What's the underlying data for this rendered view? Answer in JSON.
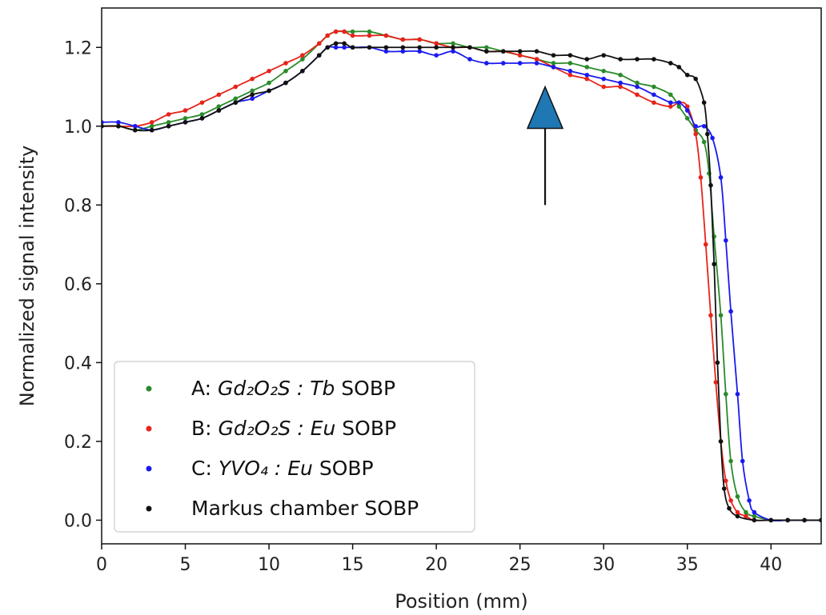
{
  "chart_data": {
    "type": "line",
    "title": "",
    "xlabel": "Position (mm)",
    "ylabel": "Normalized signal intensity",
    "xlim": [
      0,
      43
    ],
    "ylim": [
      -0.06,
      1.3
    ],
    "xticks": [
      0,
      5,
      10,
      15,
      20,
      25,
      30,
      35,
      40
    ],
    "yticks": [
      0.0,
      0.2,
      0.4,
      0.6,
      0.8,
      1.0,
      1.2
    ],
    "xtick_labels": [
      "0",
      "5",
      "10",
      "15",
      "20",
      "25",
      "30",
      "35",
      "40"
    ],
    "ytick_labels": [
      "0.0",
      "0.2",
      "0.4",
      "0.6",
      "0.8",
      "1.0",
      "1.2"
    ],
    "grid": false,
    "legend_position": "lower-left",
    "annotation": {
      "type": "arrow",
      "x": 26.5,
      "y_tail": 0.8,
      "y_head": 1.1,
      "color": "#1f77b4"
    },
    "series": [
      {
        "name": "A: Gd₂O₂S : Tb SOBP",
        "legend": {
          "prefix": "A: ",
          "formula": "Gd₂O₂S",
          "dopant": "Tb",
          "suffix": " SOBP"
        },
        "color": "#2a8a2a",
        "x": [
          0,
          1,
          2,
          3,
          4,
          5,
          6,
          7,
          8,
          9,
          10,
          11,
          12,
          13,
          13.5,
          14,
          14.5,
          15,
          16,
          17,
          18,
          19,
          20,
          21,
          22,
          23,
          24,
          25,
          26,
          27,
          28,
          29,
          30,
          31,
          32,
          33,
          34,
          34.5,
          35,
          35.5,
          36,
          36.3,
          36.6,
          37,
          37.3,
          37.6,
          38,
          38.5,
          39,
          40,
          41,
          42,
          43
        ],
        "y": [
          1.0,
          1.0,
          0.99,
          1.0,
          1.01,
          1.02,
          1.03,
          1.05,
          1.07,
          1.09,
          1.11,
          1.14,
          1.17,
          1.21,
          1.23,
          1.24,
          1.24,
          1.24,
          1.24,
          1.23,
          1.22,
          1.22,
          1.21,
          1.21,
          1.2,
          1.2,
          1.19,
          1.18,
          1.17,
          1.16,
          1.16,
          1.15,
          1.14,
          1.13,
          1.11,
          1.1,
          1.08,
          1.05,
          1.02,
          0.99,
          0.96,
          0.88,
          0.72,
          0.52,
          0.32,
          0.15,
          0.06,
          0.02,
          0.01,
          0.0,
          0.0,
          0.0,
          0.0
        ]
      },
      {
        "name": "B: Gd₂O₂S : Eu SOBP",
        "legend": {
          "prefix": "B: ",
          "formula": "Gd₂O₂S",
          "dopant": "Eu",
          "suffix": " SOBP"
        },
        "color": "#e8231a",
        "x": [
          0,
          1,
          2,
          3,
          4,
          5,
          6,
          7,
          8,
          9,
          10,
          11,
          12,
          13,
          13.5,
          14,
          14.5,
          15,
          16,
          17,
          18,
          19,
          20,
          21,
          22,
          23,
          24,
          25,
          26,
          27,
          28,
          29,
          30,
          31,
          32,
          33,
          34,
          34.5,
          35,
          35.5,
          35.8,
          36.1,
          36.4,
          36.7,
          37,
          37.3,
          37.6,
          38,
          38.5,
          39,
          40,
          41,
          42,
          43
        ],
        "y": [
          1.0,
          1.0,
          1.0,
          1.01,
          1.03,
          1.04,
          1.06,
          1.08,
          1.1,
          1.12,
          1.14,
          1.16,
          1.18,
          1.21,
          1.23,
          1.24,
          1.24,
          1.23,
          1.23,
          1.23,
          1.22,
          1.22,
          1.21,
          1.2,
          1.2,
          1.19,
          1.19,
          1.18,
          1.17,
          1.15,
          1.13,
          1.12,
          1.1,
          1.1,
          1.08,
          1.06,
          1.05,
          1.06,
          1.05,
          0.98,
          0.87,
          0.7,
          0.52,
          0.35,
          0.2,
          0.1,
          0.05,
          0.02,
          0.01,
          0.0,
          0.0,
          0.0,
          0.0,
          0.0
        ]
      },
      {
        "name": "C: YVO₄ : Eu SOBP",
        "legend": {
          "prefix": "C: ",
          "formula": "YVO₄",
          "dopant": "Eu",
          "suffix": " SOBP"
        },
        "color": "#1a1aee",
        "x": [
          0,
          1,
          2,
          3,
          4,
          5,
          6,
          7,
          8,
          9,
          10,
          11,
          12,
          13,
          13.5,
          14,
          14.5,
          15,
          16,
          17,
          18,
          19,
          20,
          21,
          22,
          23,
          24,
          25,
          26,
          27,
          28,
          29,
          30,
          31,
          32,
          33,
          34,
          34.5,
          35,
          35.5,
          36,
          36.5,
          37,
          37.3,
          37.6,
          38,
          38.3,
          38.7,
          39,
          40,
          41,
          42,
          43
        ],
        "y": [
          1.01,
          1.01,
          1.0,
          0.99,
          1.0,
          1.01,
          1.02,
          1.04,
          1.06,
          1.07,
          1.09,
          1.11,
          1.14,
          1.18,
          1.2,
          1.2,
          1.2,
          1.2,
          1.2,
          1.19,
          1.19,
          1.19,
          1.18,
          1.19,
          1.17,
          1.16,
          1.16,
          1.16,
          1.16,
          1.15,
          1.14,
          1.13,
          1.12,
          1.11,
          1.1,
          1.08,
          1.06,
          1.06,
          1.04,
          1.0,
          1.0,
          0.97,
          0.87,
          0.71,
          0.53,
          0.32,
          0.15,
          0.05,
          0.02,
          0.0,
          0.0,
          0.0,
          0.0
        ]
      },
      {
        "name": "Markus chamber SOBP",
        "legend": {
          "prefix": "Markus chamber SOBP",
          "formula": "",
          "dopant": "",
          "suffix": ""
        },
        "color": "#111111",
        "x": [
          0,
          1,
          2,
          3,
          4,
          5,
          6,
          7,
          8,
          9,
          10,
          11,
          12,
          13,
          13.5,
          14,
          14.5,
          15,
          16,
          17,
          18,
          19,
          20,
          21,
          22,
          23,
          24,
          25,
          26,
          27,
          28,
          29,
          30,
          31,
          32,
          33,
          34,
          34.5,
          35,
          35.5,
          36,
          36.2,
          36.4,
          36.6,
          36.8,
          37,
          37.2,
          37.5,
          38,
          39,
          40,
          41,
          42,
          43
        ],
        "y": [
          1.0,
          1.0,
          0.99,
          0.99,
          1.0,
          1.01,
          1.02,
          1.04,
          1.06,
          1.08,
          1.09,
          1.11,
          1.14,
          1.18,
          1.2,
          1.21,
          1.21,
          1.2,
          1.2,
          1.2,
          1.2,
          1.2,
          1.2,
          1.2,
          1.2,
          1.19,
          1.19,
          1.19,
          1.19,
          1.18,
          1.18,
          1.17,
          1.18,
          1.17,
          1.17,
          1.17,
          1.16,
          1.15,
          1.13,
          1.12,
          1.06,
          0.98,
          0.85,
          0.65,
          0.4,
          0.2,
          0.08,
          0.03,
          0.01,
          0.0,
          0.0,
          0.0,
          0.0,
          0.0
        ]
      }
    ]
  }
}
